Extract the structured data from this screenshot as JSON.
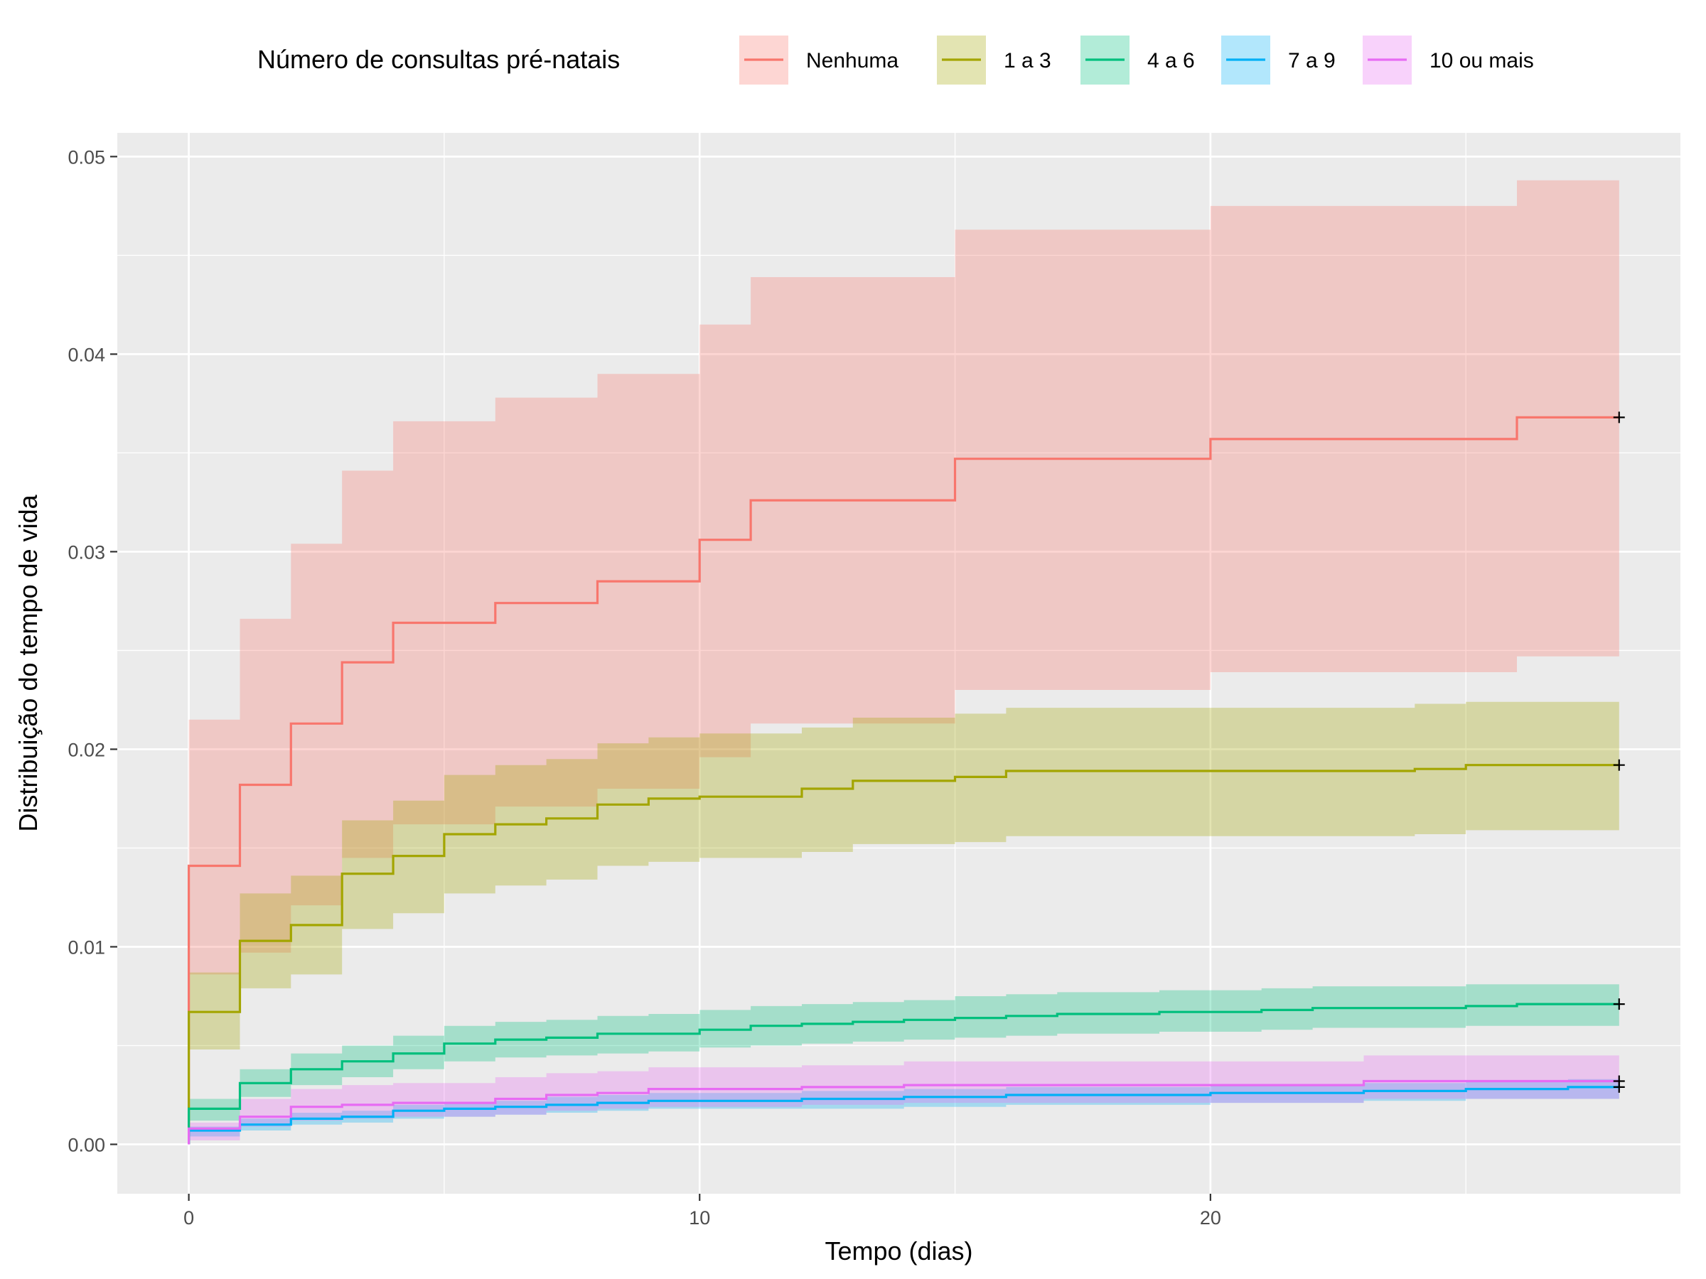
{
  "chart_data": {
    "type": "line",
    "subtype": "step-with-confidence-bands",
    "xlabel": "Tempo (dias)",
    "ylabel": "Distribuição do tempo de vida",
    "xlim": [
      -1.4,
      29.2
    ],
    "ylim": [
      -0.0025,
      0.0512
    ],
    "x_ticks": [
      0,
      10,
      20
    ],
    "x_tick_labels": [
      "0",
      "10",
      "20"
    ],
    "y_ticks": [
      0.0,
      0.01,
      0.02,
      0.03,
      0.04,
      0.05
    ],
    "y_tick_labels": [
      "0.00",
      "0.01",
      "0.02",
      "0.03",
      "0.04",
      "0.05"
    ],
    "grid": true,
    "legend": {
      "title": "Número de consultas pré-natais",
      "position": "top"
    },
    "end_time": 28,
    "series": [
      {
        "name": "Nenhuma",
        "color": "#F8766D",
        "steps": [
          {
            "t": 0,
            "y": 0.0,
            "lo": 0.0,
            "hi": 0.0
          },
          {
            "t": 0,
            "y": 0.0141,
            "lo": 0.0086,
            "hi": 0.0215
          },
          {
            "t": 1,
            "y": 0.0182,
            "lo": 0.0097,
            "hi": 0.0266
          },
          {
            "t": 2,
            "y": 0.0213,
            "lo": 0.0121,
            "hi": 0.0304
          },
          {
            "t": 3,
            "y": 0.0244,
            "lo": 0.0145,
            "hi": 0.0341
          },
          {
            "t": 4,
            "y": 0.0264,
            "lo": 0.0162,
            "hi": 0.0366
          },
          {
            "t": 6,
            "y": 0.0274,
            "lo": 0.0171,
            "hi": 0.0378
          },
          {
            "t": 8,
            "y": 0.0285,
            "lo": 0.018,
            "hi": 0.039
          },
          {
            "t": 10,
            "y": 0.0306,
            "lo": 0.0196,
            "hi": 0.0415
          },
          {
            "t": 11,
            "y": 0.0326,
            "lo": 0.0213,
            "hi": 0.0439
          },
          {
            "t": 15,
            "y": 0.0347,
            "lo": 0.023,
            "hi": 0.0463
          },
          {
            "t": 20,
            "y": 0.0357,
            "lo": 0.0239,
            "hi": 0.0475
          },
          {
            "t": 26,
            "y": 0.0368,
            "lo": 0.0247,
            "hi": 0.0488
          }
        ]
      },
      {
        "name": "1 a 3",
        "color": "#A3A500",
        "steps": [
          {
            "t": 0,
            "y": 0.0,
            "lo": 0.0,
            "hi": 0.0
          },
          {
            "t": 0,
            "y": 0.0067,
            "lo": 0.0048,
            "hi": 0.0087
          },
          {
            "t": 1,
            "y": 0.0103,
            "lo": 0.0079,
            "hi": 0.0127
          },
          {
            "t": 2,
            "y": 0.0111,
            "lo": 0.0086,
            "hi": 0.0136
          },
          {
            "t": 3,
            "y": 0.0137,
            "lo": 0.0109,
            "hi": 0.0164
          },
          {
            "t": 4,
            "y": 0.0146,
            "lo": 0.0117,
            "hi": 0.0174
          },
          {
            "t": 5,
            "y": 0.0157,
            "lo": 0.0127,
            "hi": 0.0187
          },
          {
            "t": 6,
            "y": 0.0162,
            "lo": 0.0131,
            "hi": 0.0192
          },
          {
            "t": 7,
            "y": 0.0165,
            "lo": 0.0134,
            "hi": 0.0195
          },
          {
            "t": 8,
            "y": 0.0172,
            "lo": 0.0141,
            "hi": 0.0203
          },
          {
            "t": 9,
            "y": 0.0175,
            "lo": 0.0143,
            "hi": 0.0206
          },
          {
            "t": 10,
            "y": 0.0176,
            "lo": 0.0145,
            "hi": 0.0208
          },
          {
            "t": 12,
            "y": 0.018,
            "lo": 0.0148,
            "hi": 0.0211
          },
          {
            "t": 13,
            "y": 0.0184,
            "lo": 0.0152,
            "hi": 0.0216
          },
          {
            "t": 15,
            "y": 0.0186,
            "lo": 0.0153,
            "hi": 0.0218
          },
          {
            "t": 16,
            "y": 0.0189,
            "lo": 0.0156,
            "hi": 0.0221
          },
          {
            "t": 24,
            "y": 0.019,
            "lo": 0.0157,
            "hi": 0.0223
          },
          {
            "t": 25,
            "y": 0.0192,
            "lo": 0.0159,
            "hi": 0.0224
          }
        ]
      },
      {
        "name": "4 a 6",
        "color": "#00BF7D",
        "steps": [
          {
            "t": 0,
            "y": 0.0,
            "lo": 0.0,
            "hi": 0.0
          },
          {
            "t": 0,
            "y": 0.0018,
            "lo": 0.0012,
            "hi": 0.0023
          },
          {
            "t": 1,
            "y": 0.0031,
            "lo": 0.0024,
            "hi": 0.0038
          },
          {
            "t": 2,
            "y": 0.0038,
            "lo": 0.003,
            "hi": 0.0046
          },
          {
            "t": 3,
            "y": 0.0042,
            "lo": 0.0034,
            "hi": 0.005
          },
          {
            "t": 4,
            "y": 0.0046,
            "lo": 0.0038,
            "hi": 0.0055
          },
          {
            "t": 5,
            "y": 0.0051,
            "lo": 0.0042,
            "hi": 0.006
          },
          {
            "t": 6,
            "y": 0.0053,
            "lo": 0.0044,
            "hi": 0.0062
          },
          {
            "t": 7,
            "y": 0.0054,
            "lo": 0.0045,
            "hi": 0.0063
          },
          {
            "t": 8,
            "y": 0.0056,
            "lo": 0.0046,
            "hi": 0.0065
          },
          {
            "t": 9,
            "y": 0.0056,
            "lo": 0.0047,
            "hi": 0.0066
          },
          {
            "t": 10,
            "y": 0.0058,
            "lo": 0.0049,
            "hi": 0.0068
          },
          {
            "t": 11,
            "y": 0.006,
            "lo": 0.005,
            "hi": 0.007
          },
          {
            "t": 12,
            "y": 0.0061,
            "lo": 0.0051,
            "hi": 0.0071
          },
          {
            "t": 13,
            "y": 0.0062,
            "lo": 0.0052,
            "hi": 0.0072
          },
          {
            "t": 14,
            "y": 0.0063,
            "lo": 0.0053,
            "hi": 0.0073
          },
          {
            "t": 15,
            "y": 0.0064,
            "lo": 0.0054,
            "hi": 0.0075
          },
          {
            "t": 16,
            "y": 0.0065,
            "lo": 0.0055,
            "hi": 0.0076
          },
          {
            "t": 17,
            "y": 0.0066,
            "lo": 0.0056,
            "hi": 0.0077
          },
          {
            "t": 19,
            "y": 0.0067,
            "lo": 0.0057,
            "hi": 0.0078
          },
          {
            "t": 21,
            "y": 0.0068,
            "lo": 0.0058,
            "hi": 0.0079
          },
          {
            "t": 22,
            "y": 0.0069,
            "lo": 0.0059,
            "hi": 0.008
          },
          {
            "t": 25,
            "y": 0.007,
            "lo": 0.006,
            "hi": 0.0081
          },
          {
            "t": 26,
            "y": 0.0071,
            "lo": 0.006,
            "hi": 0.0081
          }
        ]
      },
      {
        "name": "7 a 9",
        "color": "#00B0F6",
        "steps": [
          {
            "t": 0,
            "y": 0.0,
            "lo": 0.0,
            "hi": 0.0
          },
          {
            "t": 0,
            "y": 0.0007,
            "lo": 0.0004,
            "hi": 0.0009
          },
          {
            "t": 1,
            "y": 0.001,
            "lo": 0.0007,
            "hi": 0.0013
          },
          {
            "t": 2,
            "y": 0.0013,
            "lo": 0.001,
            "hi": 0.0016
          },
          {
            "t": 3,
            "y": 0.0014,
            "lo": 0.0011,
            "hi": 0.0017
          },
          {
            "t": 4,
            "y": 0.0017,
            "lo": 0.0013,
            "hi": 0.002
          },
          {
            "t": 5,
            "y": 0.0018,
            "lo": 0.0014,
            "hi": 0.0021
          },
          {
            "t": 6,
            "y": 0.0019,
            "lo": 0.0015,
            "hi": 0.0022
          },
          {
            "t": 7,
            "y": 0.002,
            "lo": 0.0016,
            "hi": 0.0024
          },
          {
            "t": 8,
            "y": 0.0021,
            "lo": 0.0017,
            "hi": 0.0025
          },
          {
            "t": 9,
            "y": 0.0022,
            "lo": 0.0018,
            "hi": 0.0026
          },
          {
            "t": 12,
            "y": 0.0023,
            "lo": 0.0018,
            "hi": 0.0027
          },
          {
            "t": 14,
            "y": 0.0024,
            "lo": 0.0019,
            "hi": 0.0028
          },
          {
            "t": 16,
            "y": 0.0025,
            "lo": 0.002,
            "hi": 0.0029
          },
          {
            "t": 20,
            "y": 0.0026,
            "lo": 0.0021,
            "hi": 0.003
          },
          {
            "t": 23,
            "y": 0.0027,
            "lo": 0.0022,
            "hi": 0.0031
          },
          {
            "t": 25,
            "y": 0.0028,
            "lo": 0.0023,
            "hi": 0.0032
          },
          {
            "t": 27,
            "y": 0.0029,
            "lo": 0.0023,
            "hi": 0.0033
          }
        ]
      },
      {
        "name": "10 ou mais",
        "color": "#E76BF3",
        "steps": [
          {
            "t": 0,
            "y": 0.0,
            "lo": 0.0,
            "hi": 0.0
          },
          {
            "t": 0,
            "y": 0.0008,
            "lo": 0.0002,
            "hi": 0.0011
          },
          {
            "t": 1,
            "y": 0.0014,
            "lo": 0.0009,
            "hi": 0.0023
          },
          {
            "t": 2,
            "y": 0.0019,
            "lo": 0.0012,
            "hi": 0.0028
          },
          {
            "t": 3,
            "y": 0.002,
            "lo": 0.0013,
            "hi": 0.003
          },
          {
            "t": 4,
            "y": 0.0021,
            "lo": 0.0014,
            "hi": 0.0031
          },
          {
            "t": 6,
            "y": 0.0023,
            "lo": 0.0015,
            "hi": 0.0034
          },
          {
            "t": 7,
            "y": 0.0025,
            "lo": 0.0017,
            "hi": 0.0036
          },
          {
            "t": 8,
            "y": 0.0026,
            "lo": 0.0018,
            "hi": 0.0037
          },
          {
            "t": 9,
            "y": 0.0028,
            "lo": 0.0019,
            "hi": 0.0039
          },
          {
            "t": 12,
            "y": 0.0029,
            "lo": 0.002,
            "hi": 0.004
          },
          {
            "t": 14,
            "y": 0.003,
            "lo": 0.0021,
            "hi": 0.0042
          },
          {
            "t": 23,
            "y": 0.0032,
            "lo": 0.0023,
            "hi": 0.0045
          }
        ]
      }
    ]
  }
}
